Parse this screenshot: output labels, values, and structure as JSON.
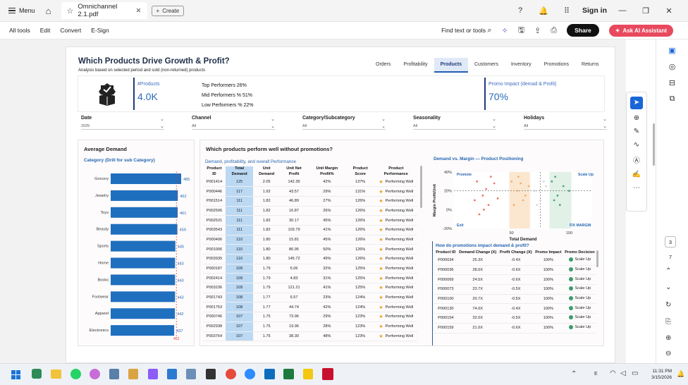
{
  "app": {
    "menu_label": "Menu",
    "tab_title": "Omnichannel 2.1.pdf",
    "create_label": "Create",
    "sign_in": "Sign in"
  },
  "toolbar": {
    "items": [
      "All tools",
      "Edit",
      "Convert",
      "E-Sign"
    ],
    "find_text": "Find text or tools",
    "share": "Share",
    "ai_assistant": "Ask AI Assistant"
  },
  "report": {
    "title": "Which Products Drive Growth & Profit?",
    "subtitle": "Analysis based on selected period and sold (non-returned) products",
    "tabs": [
      "Orders",
      "Profitability",
      "Products",
      "Customers",
      "Inventory",
      "Promotions",
      "Returns"
    ],
    "active_tab": "Products"
  },
  "kpi": {
    "products_label": "#Products",
    "products_value": "4.0K",
    "top_performers": "Top Performers 26%",
    "mid_performers": "Mid Performers % 51%",
    "low_performers": "Low Performers % 22%",
    "promo_label": "Promo Impact (demad & Profit)",
    "promo_value": "70%"
  },
  "filters": [
    {
      "label": "Date",
      "value": "2025"
    },
    {
      "label": "Channel",
      "value": "All"
    },
    {
      "label": "Category/Subcategory",
      "value": "All"
    },
    {
      "label": "Seasonality",
      "value": "All"
    },
    {
      "label": "Holidays",
      "value": "All"
    }
  ],
  "avg_demand": {
    "title": "Average Demand",
    "subtitle": "Category (Drill for sub Category)",
    "reference_value": "452"
  },
  "chart_data": [
    {
      "type": "bar",
      "orientation": "horizontal",
      "title": "Average Demand",
      "subtitle": "Category (Drill for sub Category)",
      "categories": [
        "Grocery",
        "Jewelry",
        "Toys",
        "Beauty",
        "Sports",
        "Home",
        "Books",
        "Footwear",
        "Apparel",
        "Electronics"
      ],
      "values": [
        485,
        462,
        461,
        459,
        445,
        443,
        443,
        443,
        442,
        437
      ],
      "reference_line": 452,
      "bar_color": "#1f6fbf"
    },
    {
      "type": "scatter",
      "title": "Demand vs. Margin — Product Positioning",
      "xlabel": "Total Demand",
      "ylabel": "Margin Profit/Unit",
      "x_ticks": [
        50,
        100
      ],
      "y_ticks": [
        "40%",
        "20%",
        "0%",
        "-20%"
      ],
      "quadrant_labels": [
        "Promote",
        "Scale Up",
        "Exit",
        "FIX MARGIN"
      ],
      "series": [
        {
          "color": "#e8604c",
          "points": [
            [
              20,
              30
            ],
            [
              25,
              15
            ],
            [
              30,
              5
            ],
            [
              35,
              28
            ],
            [
              18,
              10
            ],
            [
              28,
              22
            ],
            [
              32,
              35
            ],
            [
              22,
              -5
            ],
            [
              38,
              12
            ],
            [
              26,
              0
            ]
          ]
        },
        {
          "color": "#f5a25a",
          "points": [
            [
              50,
              30
            ],
            [
              55,
              20
            ],
            [
              60,
              10
            ],
            [
              52,
              5
            ],
            [
              58,
              28
            ],
            [
              62,
              15
            ],
            [
              56,
              35
            ],
            [
              65,
              25
            ]
          ]
        },
        {
          "color": "#2c9c6e",
          "points": [
            [
              85,
              30
            ],
            [
              90,
              15
            ],
            [
              95,
              25
            ],
            [
              88,
              35
            ],
            [
              92,
              5
            ],
            [
              100,
              20
            ],
            [
              87,
              10
            ]
          ]
        },
        {
          "color": "#d0d0d0",
          "points": [
            [
              70,
              20
            ],
            [
              75,
              10
            ],
            [
              80,
              25
            ],
            [
              72,
              5
            ],
            [
              78,
              30
            ]
          ]
        }
      ]
    }
  ],
  "main": {
    "title": "Which products perform well without promotions?",
    "table_title": "Demand, profitability, and overall Performance",
    "columns": [
      "Product ID",
      "Total Demand",
      "Unit Demand",
      "Unit Net Profit",
      "Unit Margin Profit%",
      "Product Score",
      "Product Performance"
    ],
    "rows": [
      [
        "P001414",
        "125",
        "2.05",
        "142.36",
        "42%",
        "137%",
        "Performing Well"
      ],
      [
        "P000446",
        "117",
        "1.92",
        "43.57",
        "29%",
        "131%",
        "Performing Well"
      ],
      [
        "P001514",
        "111",
        "1.82",
        "46.89",
        "27%",
        "126%",
        "Performing Well"
      ],
      [
        "P002506",
        "111",
        "1.82",
        "16.87",
        "26%",
        "126%",
        "Performing Well"
      ],
      [
        "P002531",
        "111",
        "1.82",
        "30.17",
        "45%",
        "126%",
        "Performing Well"
      ],
      [
        "P003543",
        "111",
        "1.82",
        "103.79",
        "41%",
        "126%",
        "Performing Well"
      ],
      [
        "P000406",
        "110",
        "1.80",
        "15.81",
        "45%",
        "126%",
        "Performing Well"
      ],
      [
        "P001006",
        "110",
        "1.80",
        "86.95",
        "50%",
        "126%",
        "Performing Well"
      ],
      [
        "P003935",
        "110",
        "1.80",
        "145.72",
        "49%",
        "126%",
        "Performing Well"
      ],
      [
        "P000187",
        "109",
        "1.79",
        "5.06",
        "32%",
        "125%",
        "Performing Well"
      ],
      [
        "P002414",
        "109",
        "1.79",
        "4.83",
        "31%",
        "125%",
        "Performing Well"
      ],
      [
        "P003236",
        "109",
        "1.79",
        "121.21",
        "41%",
        "125%",
        "Performing Well"
      ],
      [
        "P001743",
        "108",
        "1.77",
        "6.57",
        "23%",
        "124%",
        "Performing Well"
      ],
      [
        "P001753",
        "108",
        "1.77",
        "44.74",
        "42%",
        "124%",
        "Performing Well"
      ],
      [
        "P000746",
        "107",
        "1.75",
        "73.96",
        "29%",
        "123%",
        "Performing Well"
      ],
      [
        "P002938",
        "107",
        "1.75",
        "19.96",
        "28%",
        "123%",
        "Performing Well"
      ],
      [
        "P003764",
        "107",
        "1.75",
        "38.30",
        "48%",
        "123%",
        "Performing Well"
      ]
    ]
  },
  "promo": {
    "title": "How do promotions impact demand & profit?",
    "columns": [
      "Product ID",
      "Demand Change (X)",
      "Profit Change (X)",
      "Promo Impact",
      "Promo Decision"
    ],
    "rows": [
      [
        "P000034",
        "25.3X",
        "-0.4X",
        "100%",
        "Scale Up"
      ],
      [
        "P000036",
        "28.0X",
        "-0.6X",
        "100%",
        "Scale Up"
      ],
      [
        "P000069",
        "24.5X",
        "-0.6X",
        "100%",
        "Scale Up"
      ],
      [
        "P000073",
        "23.7X",
        "-0.5X",
        "100%",
        "Scale Up"
      ],
      [
        "P000100",
        "20.7X",
        "-0.5X",
        "100%",
        "Scale Up"
      ],
      [
        "P000130",
        "74.0X",
        "-0.4X",
        "100%",
        "Scale Up"
      ],
      [
        "P000154",
        "32.0X",
        "-0.5X",
        "100%",
        "Scale Up"
      ],
      [
        "P000159",
        "21.0X",
        "-0.6X",
        "100%",
        "Scale Up"
      ]
    ]
  },
  "pager": {
    "current": "3",
    "total": "7"
  },
  "clock": {
    "time": "11:31 PM",
    "date": "3/15/2026"
  },
  "colors": {
    "accent": "#1f6fbf",
    "highlight_column": "#bcd9f3",
    "ai_button": "#e8495e"
  }
}
